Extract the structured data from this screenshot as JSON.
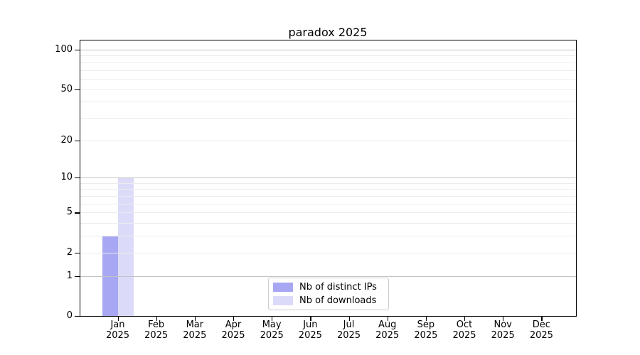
{
  "chart_data": {
    "type": "bar",
    "title": "paradox 2025",
    "categories": [
      "Jan",
      "Feb",
      "Mar",
      "Apr",
      "May",
      "Jun",
      "Jul",
      "Aug",
      "Sep",
      "Oct",
      "Nov",
      "Dec"
    ],
    "x_tick_year": "2025",
    "series": [
      {
        "name": "Nb of distinct IPs",
        "color": "#a7a7f3",
        "values": [
          3,
          0,
          0,
          0,
          0,
          0,
          0,
          0,
          0,
          0,
          0,
          0
        ]
      },
      {
        "name": "Nb of downloads",
        "color": "#dbdbf9",
        "values": [
          10,
          0,
          0,
          0,
          0,
          0,
          0,
          0,
          0,
          0,
          0,
          0
        ]
      }
    ],
    "y_scale": "log1p",
    "ylim": [
      0,
      118
    ],
    "yticks": [
      0,
      1,
      2,
      5,
      10,
      20,
      50,
      100
    ],
    "ytick_labels": [
      "0",
      "1",
      "2",
      "5",
      "10",
      "20",
      "50",
      "100"
    ],
    "major_gridlines": [
      1,
      10,
      100
    ],
    "minor_gridlines": [
      2,
      3,
      4,
      5,
      6,
      7,
      8,
      9,
      20,
      30,
      40,
      50,
      60,
      70,
      80,
      90
    ],
    "grid": true,
    "legend": {
      "position": "lower center",
      "entries": [
        "Nb of distinct IPs",
        "Nb of downloads"
      ]
    },
    "colors": {
      "major_grid": "#c2c2c2",
      "minor_grid": "#ececec",
      "spine": "#000000",
      "text": "#000000",
      "legend_border": "#cccccc",
      "background": "#ffffff"
    }
  }
}
